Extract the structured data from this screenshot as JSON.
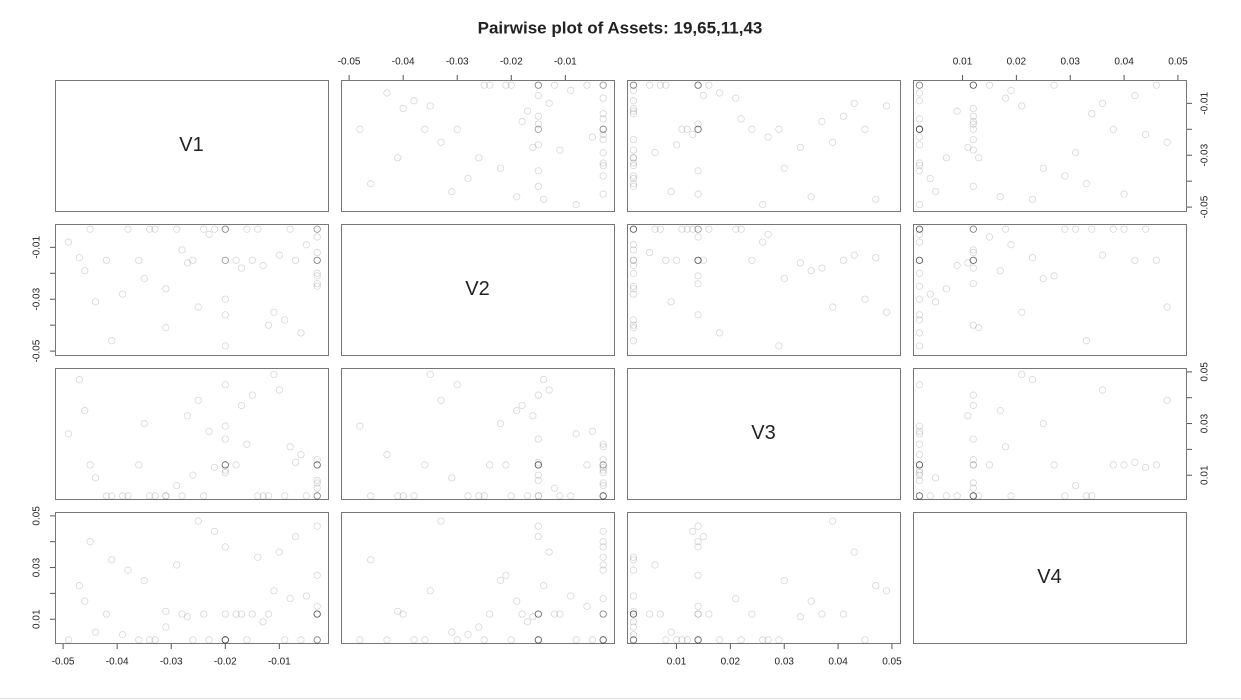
{
  "chart_data": {
    "type": "pairs",
    "title": "Pairwise plot of Assets: 19,65,11,43",
    "color": "#000000",
    "series": [
      {
        "name": "V1",
        "lim": [
          -0.0515,
          -0.001
        ],
        "ticks": [
          -0.05,
          -0.04,
          -0.03,
          -0.02,
          -0.01
        ],
        "values": [
          -0.003,
          -0.02,
          -0.035,
          -0.012,
          -0.003,
          -0.045,
          -0.02,
          -0.028,
          -0.008,
          -0.003,
          -0.041,
          -0.017,
          -0.02,
          -0.031,
          -0.003,
          -0.049,
          -0.024,
          -0.011,
          -0.02,
          -0.003,
          -0.038,
          -0.006,
          -0.027,
          -0.02,
          -0.003,
          -0.015,
          -0.044,
          -0.033,
          -0.003,
          -0.02,
          -0.009,
          -0.022,
          -0.047,
          -0.003,
          -0.018,
          -0.029,
          -0.02,
          -0.013,
          -0.003,
          -0.036,
          -0.005,
          -0.025,
          -0.02,
          -0.042,
          -0.003,
          -0.016,
          -0.031,
          -0.01,
          -0.02,
          -0.003,
          -0.039,
          -0.023,
          -0.007,
          -0.003,
          -0.02,
          -0.046,
          -0.014,
          -0.026,
          -0.003,
          -0.034
        ]
      },
      {
        "name": "V2",
        "lim": [
          -0.0515,
          -0.001
        ],
        "ticks": [
          -0.05,
          -0.04,
          -0.03,
          -0.02,
          -0.01
        ],
        "values": [
          -0.015,
          -0.003,
          -0.022,
          -0.04,
          -0.015,
          -0.003,
          -0.03,
          -0.011,
          -0.003,
          -0.015,
          -0.046,
          -0.018,
          -0.003,
          -0.026,
          -0.015,
          -0.008,
          -0.003,
          -0.035,
          -0.015,
          -0.012,
          -0.003,
          -0.043,
          -0.016,
          -0.003,
          -0.02,
          -0.015,
          -0.031,
          -0.003,
          -0.006,
          -0.015,
          -0.038,
          -0.003,
          -0.014,
          -0.025,
          -0.015,
          -0.003,
          -0.048,
          -0.017,
          -0.003,
          -0.015,
          -0.009,
          -0.033,
          -0.003,
          -0.015,
          -0.021,
          -0.003,
          -0.041,
          -0.013,
          -0.015,
          -0.003,
          -0.028,
          -0.005,
          -0.015,
          -0.003,
          -0.036,
          -0.019,
          -0.003,
          -0.015,
          -0.024,
          -0.003
        ]
      },
      {
        "name": "V3",
        "lim": [
          0.0008,
          0.0515
        ],
        "ticks": [
          0.01,
          0.02,
          0.03,
          0.04,
          0.05
        ],
        "values": [
          0.002,
          0.014,
          0.03,
          0.002,
          0.008,
          0.014,
          0.045,
          0.002,
          0.021,
          0.014,
          0.002,
          0.037,
          0.011,
          0.002,
          0.014,
          0.026,
          0.002,
          0.049,
          0.014,
          0.005,
          0.002,
          0.018,
          0.033,
          0.014,
          0.002,
          0.041,
          0.009,
          0.002,
          0.014,
          0.024,
          0.002,
          0.013,
          0.047,
          0.002,
          0.014,
          0.006,
          0.029,
          0.002,
          0.016,
          0.014,
          0.002,
          0.039,
          0.012,
          0.002,
          0.014,
          0.022,
          0.002,
          0.043,
          0.014,
          0.007,
          0.002,
          0.027,
          0.015,
          0.002,
          0.014,
          0.035,
          0.002,
          0.01,
          0.014,
          0.002
        ]
      },
      {
        "name": "V4",
        "lim": [
          0.0008,
          0.0515
        ],
        "ticks": [
          0.01,
          0.02,
          0.03,
          0.04,
          0.05
        ],
        "values": [
          0.012,
          0.002,
          0.025,
          0.012,
          0.002,
          0.04,
          0.002,
          0.012,
          0.018,
          0.002,
          0.033,
          0.012,
          0.002,
          0.007,
          0.046,
          0.002,
          0.012,
          0.021,
          0.002,
          0.012,
          0.029,
          0.002,
          0.011,
          0.038,
          0.002,
          0.012,
          0.005,
          0.002,
          0.015,
          0.012,
          0.002,
          0.044,
          0.023,
          0.002,
          0.012,
          0.031,
          0.002,
          0.009,
          0.012,
          0.002,
          0.019,
          0.048,
          0.002,
          0.012,
          0.027,
          0.002,
          0.013,
          0.036,
          0.002,
          0.012,
          0.004,
          0.002,
          0.042,
          0.012,
          0.002,
          0.017,
          0.034,
          0.002,
          0.012,
          0.002
        ]
      }
    ]
  }
}
